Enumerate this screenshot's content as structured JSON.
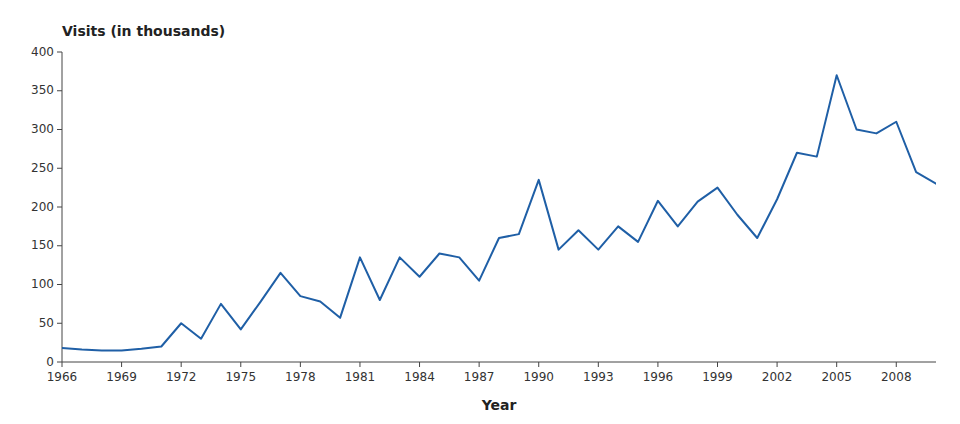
{
  "chart_data": {
    "type": "line",
    "x": [
      1966,
      1967,
      1968,
      1969,
      1970,
      1971,
      1972,
      1973,
      1974,
      1975,
      1976,
      1977,
      1978,
      1979,
      1980,
      1981,
      1982,
      1983,
      1984,
      1985,
      1986,
      1987,
      1988,
      1989,
      1990,
      1991,
      1992,
      1993,
      1994,
      1995,
      1996,
      1997,
      1998,
      1999,
      2000,
      2001,
      2002,
      2003,
      2004,
      2005,
      2006,
      2007,
      2008,
      2009,
      2010
    ],
    "values": [
      18,
      16,
      15,
      15,
      17,
      20,
      50,
      30,
      75,
      42,
      78,
      115,
      85,
      78,
      57,
      135,
      80,
      135,
      110,
      140,
      135,
      105,
      160,
      165,
      235,
      145,
      170,
      145,
      175,
      155,
      208,
      175,
      207,
      225,
      190,
      160,
      210,
      270,
      265,
      370,
      300,
      295,
      310,
      245,
      230
    ],
    "color": "#1f5fa6",
    "xlabel": "Year",
    "ylabel": "Visits (in thousands)",
    "xlim": [
      1966,
      2010
    ],
    "ylim": [
      0,
      400
    ],
    "xticks": [
      1966,
      1969,
      1972,
      1975,
      1978,
      1981,
      1984,
      1987,
      1990,
      1993,
      1996,
      1999,
      2002,
      2005,
      2008
    ],
    "yticks": [
      0,
      50,
      100,
      150,
      200,
      250,
      300,
      350,
      400
    ],
    "grid": false
  }
}
